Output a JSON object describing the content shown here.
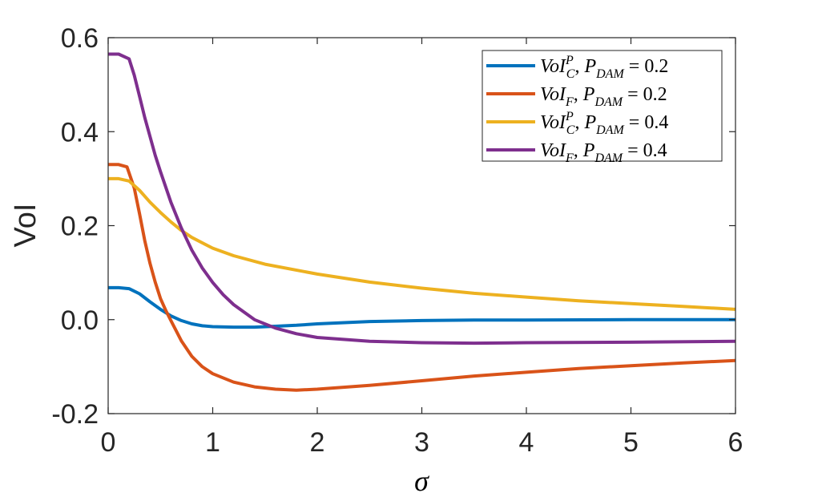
{
  "chart_data": {
    "type": "line",
    "title": "",
    "xlabel": "σ",
    "ylabel": "VoI",
    "xlim": [
      0,
      6
    ],
    "ylim": [
      -0.2,
      0.6
    ],
    "xticks": [
      0,
      1,
      2,
      3,
      4,
      5,
      6
    ],
    "xtick_labels": [
      "0",
      "1",
      "2",
      "3",
      "4",
      "5",
      "6"
    ],
    "yticks": [
      -0.2,
      0.0,
      0.2,
      0.4,
      0.6
    ],
    "ytick_labels": [
      "-0.2",
      "0.0",
      "0.2",
      "0.4",
      "0.6"
    ],
    "grid": false,
    "legend_position": "top-right",
    "series": [
      {
        "name": "VoI_C^P, P_DAM = 0.2",
        "legend": {
          "base": "VoI",
          "sub": "C",
          "sup": "P",
          "p": "P",
          "p_sub": "DAM",
          "value": "= 0.2"
        },
        "color": "#0072BD",
        "x": [
          0,
          0.1,
          0.2,
          0.3,
          0.4,
          0.5,
          0.6,
          0.7,
          0.8,
          0.9,
          1.0,
          1.2,
          1.4,
          1.6,
          1.8,
          2.0,
          2.5,
          3.0,
          3.5,
          4.0,
          5.0,
          6.0
        ],
        "y": [
          0.068,
          0.068,
          0.066,
          0.055,
          0.038,
          0.022,
          0.008,
          -0.002,
          -0.009,
          -0.013,
          -0.015,
          -0.016,
          -0.016,
          -0.014,
          -0.012,
          -0.009,
          -0.004,
          -0.002,
          -0.001,
          -0.001,
          0.0,
          0.0
        ]
      },
      {
        "name": "VoI_F, P_DAM = 0.2",
        "legend": {
          "base": "VoI",
          "sub": "F",
          "sup": "",
          "p": "P",
          "p_sub": "DAM",
          "value": "= 0.2"
        },
        "color": "#D95319",
        "x": [
          0,
          0.1,
          0.18,
          0.25,
          0.3,
          0.35,
          0.4,
          0.45,
          0.5,
          0.55,
          0.6,
          0.7,
          0.8,
          0.9,
          1.0,
          1.2,
          1.4,
          1.6,
          1.8,
          2.0,
          2.5,
          3.0,
          3.5,
          4.0,
          4.5,
          5.0,
          5.5,
          6.0
        ],
        "y": [
          0.33,
          0.33,
          0.325,
          0.28,
          0.225,
          0.168,
          0.12,
          0.08,
          0.045,
          0.02,
          -0.002,
          -0.045,
          -0.078,
          -0.1,
          -0.115,
          -0.133,
          -0.143,
          -0.148,
          -0.15,
          -0.148,
          -0.14,
          -0.13,
          -0.12,
          -0.112,
          -0.104,
          -0.098,
          -0.092,
          -0.087
        ]
      },
      {
        "name": "VoI_C^P, P_DAM = 0.4",
        "legend": {
          "base": "VoI",
          "sub": "C",
          "sup": "P",
          "p": "P",
          "p_sub": "DAM",
          "value": "= 0.4"
        },
        "color": "#EDB120",
        "x": [
          0,
          0.1,
          0.2,
          0.3,
          0.4,
          0.5,
          0.6,
          0.7,
          0.8,
          1.0,
          1.2,
          1.5,
          2.0,
          2.5,
          3.0,
          3.5,
          4.0,
          4.5,
          5.0,
          5.5,
          6.0
        ],
        "y": [
          0.3,
          0.3,
          0.295,
          0.275,
          0.25,
          0.228,
          0.208,
          0.19,
          0.175,
          0.152,
          0.136,
          0.118,
          0.097,
          0.08,
          0.067,
          0.056,
          0.048,
          0.04,
          0.034,
          0.028,
          0.022
        ]
      },
      {
        "name": "VoI_F, P_DAM = 0.4",
        "legend": {
          "base": "VoI",
          "sub": "F",
          "sup": "",
          "p": "P",
          "p_sub": "DAM",
          "value": "= 0.4"
        },
        "color": "#7E2F8E",
        "x": [
          0,
          0.1,
          0.2,
          0.25,
          0.3,
          0.35,
          0.4,
          0.45,
          0.5,
          0.6,
          0.7,
          0.8,
          0.9,
          1.0,
          1.1,
          1.2,
          1.4,
          1.6,
          1.8,
          2.0,
          2.5,
          3.0,
          3.5,
          4.0,
          5.0,
          6.0
        ],
        "y": [
          0.565,
          0.565,
          0.555,
          0.52,
          0.475,
          0.43,
          0.39,
          0.35,
          0.315,
          0.25,
          0.195,
          0.148,
          0.11,
          0.079,
          0.053,
          0.032,
          0.0,
          -0.018,
          -0.03,
          -0.038,
          -0.046,
          -0.049,
          -0.05,
          -0.049,
          -0.048,
          -0.046
        ]
      }
    ]
  }
}
